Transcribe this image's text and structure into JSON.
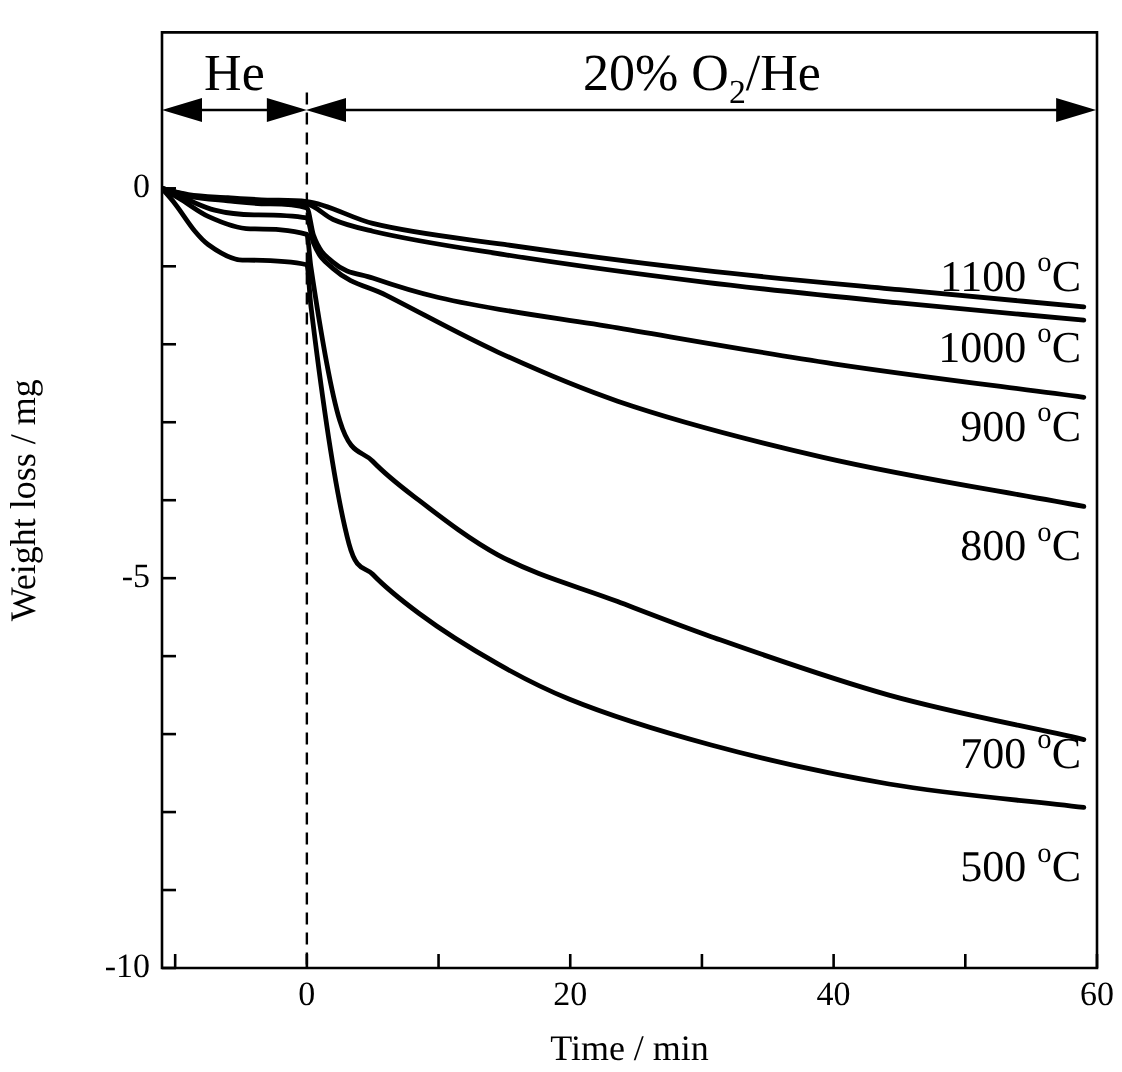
{
  "chart_data": {
    "type": "line",
    "xlabel": "Time / min",
    "ylabel": "Weight loss / mg",
    "xlim": [
      -11,
      60
    ],
    "ylim": [
      -10,
      2
    ],
    "xticks": [
      {
        "value": -10,
        "label": null
      },
      0,
      {
        "value": 10,
        "label": null
      },
      20,
      {
        "value": 30,
        "label": null
      },
      40,
      {
        "value": 50,
        "label": null
      },
      60
    ],
    "yticks": [
      -10,
      {
        "value": -9,
        "label": null
      },
      {
        "value": -8,
        "label": null
      },
      {
        "value": -7,
        "label": null
      },
      {
        "value": -6,
        "label": null
      },
      -5,
      {
        "value": -4,
        "label": null
      },
      {
        "value": -3,
        "label": null
      },
      {
        "value": -2,
        "label": null
      },
      {
        "value": -1,
        "label": null
      },
      0
    ],
    "grid": false,
    "legend": false,
    "marker": "none",
    "line_style": "solid",
    "ref_lines": [
      {
        "axis": "x",
        "value": 0,
        "line_style": "dashed",
        "color": "#000000"
      }
    ],
    "annotations": [
      "He",
      "20% O$_{2}$/He"
    ],
    "series": [
      {
        "name": "1100 $^{o}$C",
        "color": "#000000",
        "x": [
          -11,
          -9,
          -6,
          -3,
          0,
          5,
          15,
          30,
          45,
          59
        ],
        "values": [
          0,
          -0.08,
          -0.12,
          -0.15,
          -0.17,
          -0.45,
          -0.72,
          -1.05,
          -1.3,
          -1.52
        ]
      },
      {
        "name": "1000 $^{o}$C",
        "color": "#000000",
        "x": [
          -11,
          -9,
          -6,
          -3,
          0,
          2,
          5,
          15,
          30,
          45,
          59
        ],
        "values": [
          0,
          -0.09,
          -0.14,
          -0.17,
          -0.2,
          -0.4,
          -0.55,
          -0.85,
          -1.2,
          -1.47,
          -1.69
        ]
      },
      {
        "name": "900 $^{o}$C",
        "color": "#000000",
        "x": [
          -11,
          -9,
          -6,
          -3,
          0,
          0.5,
          2,
          5,
          10,
          23.6,
          40,
          59
        ],
        "values": [
          0,
          -0.1,
          -0.16,
          -0.2,
          -0.25,
          -0.6,
          -0.95,
          -1.15,
          -1.4,
          -1.79,
          -2.25,
          -2.68
        ]
      },
      {
        "name": "800 $^{o}$C",
        "color": "#000000",
        "x": [
          -11,
          -9,
          -7,
          -4,
          0,
          0.5,
          2,
          6,
          14.5,
          23.6,
          39.2,
          59
        ],
        "values": [
          0,
          -0.15,
          -0.28,
          -0.34,
          -0.38,
          -0.7,
          -1.03,
          -1.37,
          -2.1,
          -2.73,
          -3.45,
          -4.08
        ]
      },
      {
        "name": "700 $^{o}$C",
        "color": "#000000",
        "x": [
          -11,
          -9.5,
          -7.5,
          -4.3,
          0,
          0.3,
          2.5,
          5,
          8.5,
          14.5,
          23.6,
          30.7,
          44.2,
          59
        ],
        "values": [
          0,
          -0.15,
          -0.36,
          -0.52,
          -0.59,
          -1.0,
          -2.98,
          -3.5,
          -4.0,
          -4.7,
          -5.3,
          -5.75,
          -6.5,
          -7.07
        ]
      },
      {
        "name": "500 $^{o}$C",
        "color": "#000000",
        "x": [
          -11,
          -10,
          -8.5,
          -7.5,
          -4.9,
          0,
          0.3,
          3.2,
          5,
          8.5,
          14.5,
          19.9,
          30.7,
          44.2,
          59
        ],
        "values": [
          0,
          -0.2,
          -0.55,
          -0.72,
          -0.92,
          -0.98,
          -1.5,
          -4.56,
          -4.95,
          -5.45,
          -6.1,
          -6.55,
          -7.14,
          -7.64,
          -7.94
        ]
      }
    ]
  }
}
